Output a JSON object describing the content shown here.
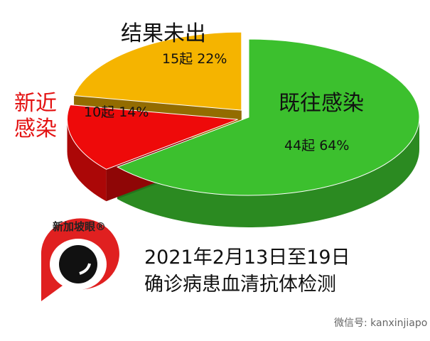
{
  "chart_data": {
    "type": "pie3d",
    "categories": [
      "既往感染",
      "新近感染",
      "结果未出"
    ],
    "values": [
      64,
      14,
      22
    ],
    "value_labels": [
      "44起 64%",
      "10起 14%",
      "15起 22%"
    ],
    "colors": [
      "#3cc02e",
      "#ee0a0a",
      "#f5b400"
    ],
    "caption_lines": [
      "2021年2月13日至19日",
      "确诊病患血清抗体检测"
    ]
  },
  "logo": "新加坡眼®",
  "watermark": "微信号: kanxinjiapo"
}
